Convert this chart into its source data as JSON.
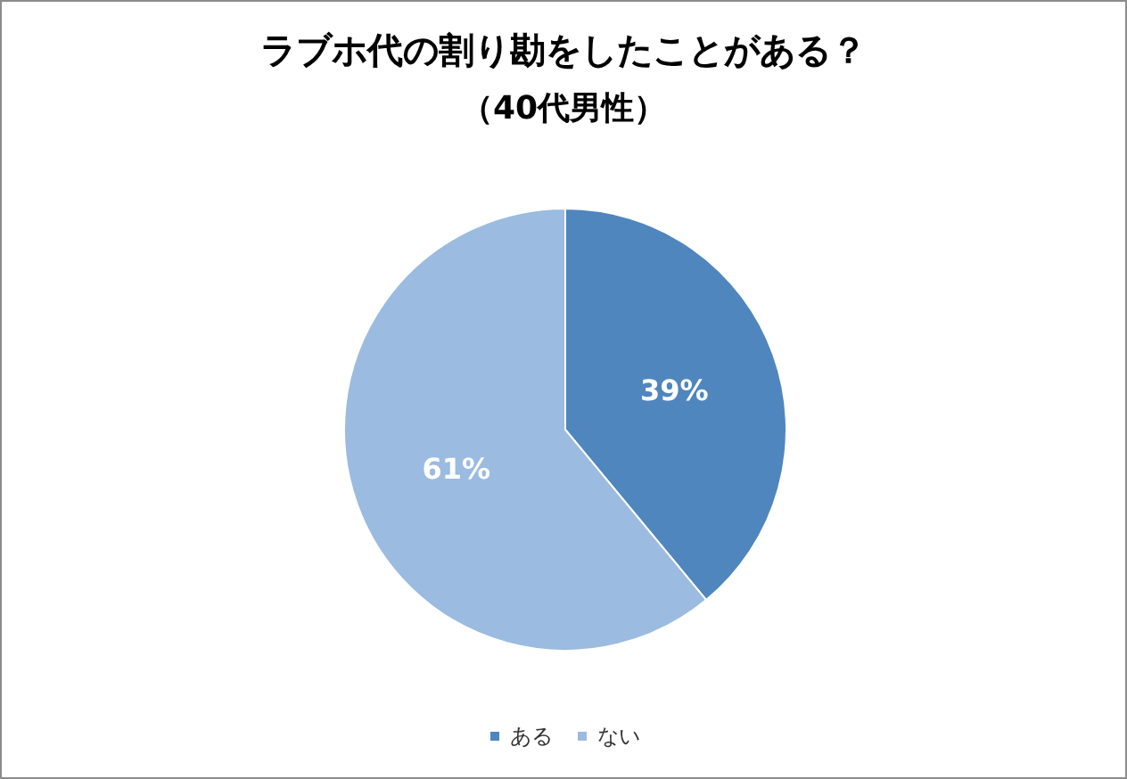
{
  "chart_data": {
    "type": "pie",
    "title": "ラブホ代の割り勘をしたことがある？",
    "subtitle": "（40代男性）",
    "categories": [
      "ある",
      "ない"
    ],
    "values": [
      39,
      61
    ],
    "colors": [
      "#4f86be",
      "#9bbbe0"
    ],
    "value_labels": [
      "39%",
      "61%"
    ],
    "legend": "bottom"
  }
}
